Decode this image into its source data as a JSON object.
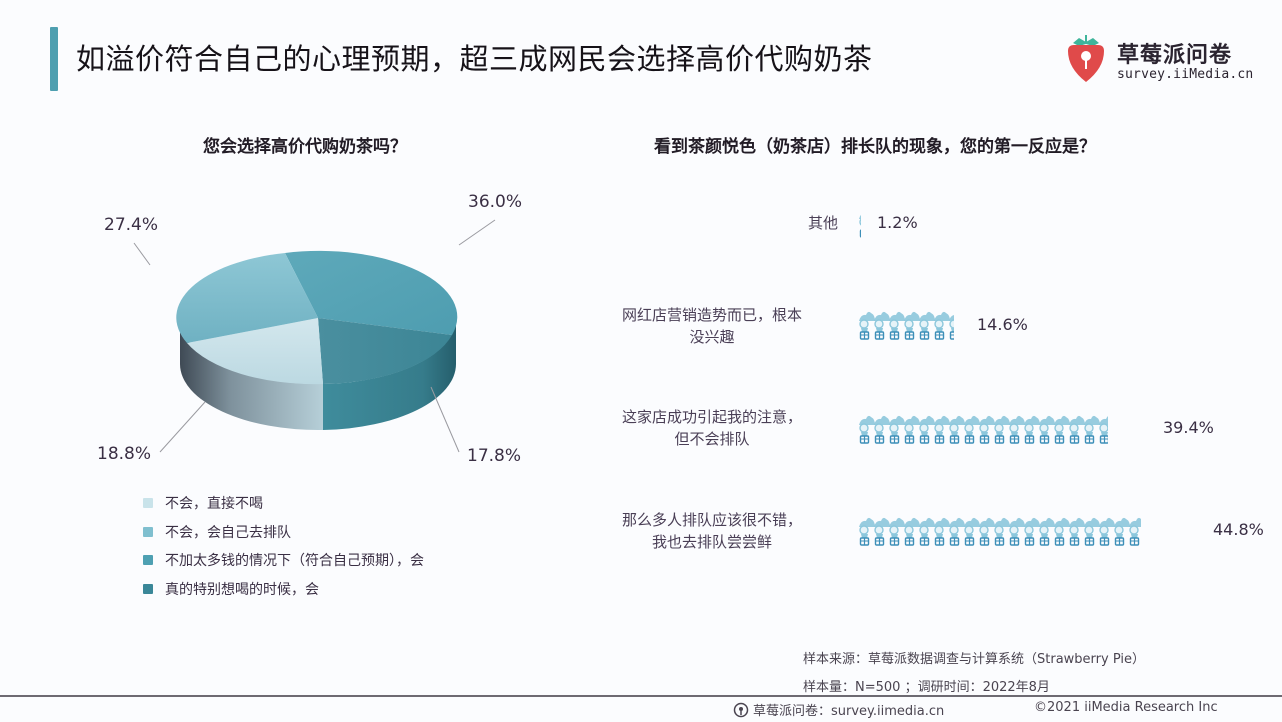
{
  "header": {
    "title": "如溢价符合自己的心理预期，超三成网民会选择高价代购奶茶",
    "logo": {
      "name": "草莓派问卷",
      "url": "survey.iiMedia.cn",
      "icon": "strawberry-icon"
    }
  },
  "left_chart": {
    "title": "您会选择高价代购奶茶吗？",
    "labels": {
      "s36": "36.0%",
      "s274": "27.4%",
      "s188": "18.8%",
      "s178": "17.8%"
    },
    "legend": [
      {
        "label": "不会，直接不喝",
        "color": "#c9e3ea"
      },
      {
        "label": "不会，会自己去排队",
        "color": "#7fbfcf"
      },
      {
        "label": "不加太多钱的情况下（符合自己预期），会",
        "color": "#4ea0b2"
      },
      {
        "label": "真的特别想喝的时候，会",
        "color": "#3a8798"
      }
    ]
  },
  "right_chart": {
    "title": "看到茶颜悦色（奶茶店）排长队的现象，您的第一反应是？",
    "icon": "milk-tea-cup-icon",
    "rows": [
      {
        "label_line1": "其他",
        "label_line2": "",
        "value": "1.2%"
      },
      {
        "label_line1": "网红店营销造势而已，根本",
        "label_line2": "没兴趣",
        "value": "14.6%"
      },
      {
        "label_line1": "这家店成功引起我的注意，",
        "label_line2": "但不会排队",
        "value": "39.4%"
      },
      {
        "label_line1": "那么多人排队应该很不错，",
        "label_line2": "我也去排队尝尝鲜",
        "value": "44.8%"
      }
    ]
  },
  "source": {
    "line1": "样本来源：草莓派数据调查与计算系统（Strawberry Pie）",
    "line2": "样本量：N=500 ；调研时间：2022年8月"
  },
  "footer": {
    "left": "草莓派问卷：survey.iimedia.cn",
    "right": "©2021  iiMedia Research  Inc"
  },
  "colors": {
    "accent": "#4e9fb0",
    "icon_fill": "#8cc7dc",
    "icon_dark": "#3d8fb8"
  },
  "chart_data": [
    {
      "type": "pie",
      "title": "您会选择高价代购奶茶吗？",
      "categories": [
        "不会，直接不喝",
        "不会，会自己去排队",
        "不加太多钱的情况下（符合自己预期），会",
        "真的特别想喝的时候，会"
      ],
      "values": [
        18.8,
        27.4,
        36.0,
        17.8
      ],
      "unit": "%",
      "style": "3d",
      "legend_position": "bottom"
    },
    {
      "type": "bar",
      "style": "pictograph",
      "title": "看到茶颜悦色（奶茶店）排长队的现象，您的第一反应是？",
      "categories": [
        "其他",
        "网红店营销造势而已，根本没兴趣",
        "这家店成功引起我的注意，但不会排队",
        "那么多人排队应该很不错，我也去排队尝尝鲜"
      ],
      "values": [
        1.2,
        14.6,
        39.4,
        44.8
      ],
      "unit": "%",
      "orientation": "horizontal"
    }
  ]
}
